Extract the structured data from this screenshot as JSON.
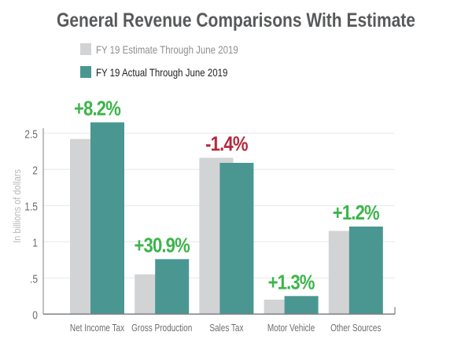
{
  "chart_data": {
    "type": "bar",
    "title": "General Revenue Comparisons With Estimate",
    "ylabel": "In billions of dollars",
    "xlabel": "",
    "ylim": [
      0,
      2.5
    ],
    "yticks": [
      0,
      0.5,
      1,
      1.5,
      2,
      2.5
    ],
    "ytick_labels": [
      "0",
      ".5",
      "1",
      "1.5",
      "2",
      "2.5"
    ],
    "grid": true,
    "legend_placement": "top-left",
    "categories": [
      "Net Income Tax",
      "Gross Production",
      "Sales Tax",
      "Motor Vehicle",
      "Other Sources"
    ],
    "series": [
      {
        "name": "FY 19 Estimate Through June 2019",
        "color": "#d2d3d5",
        "values": [
          2.42,
          0.55,
          2.16,
          0.2,
          1.15
        ]
      },
      {
        "name": "FY 19 Actual Through June 2019",
        "color": "#4a9792",
        "values": [
          2.65,
          0.76,
          2.09,
          0.25,
          1.21
        ]
      }
    ],
    "annotations": [
      {
        "text": "+8.2%",
        "color": "#3cb54a"
      },
      {
        "text": "+30.9%",
        "color": "#3cb54a"
      },
      {
        "text": "-1.4%",
        "color": "#b5283a"
      },
      {
        "text": "+1.3%",
        "color": "#3cb54a"
      },
      {
        "text": "+1.2%",
        "color": "#3cb54a"
      }
    ]
  }
}
